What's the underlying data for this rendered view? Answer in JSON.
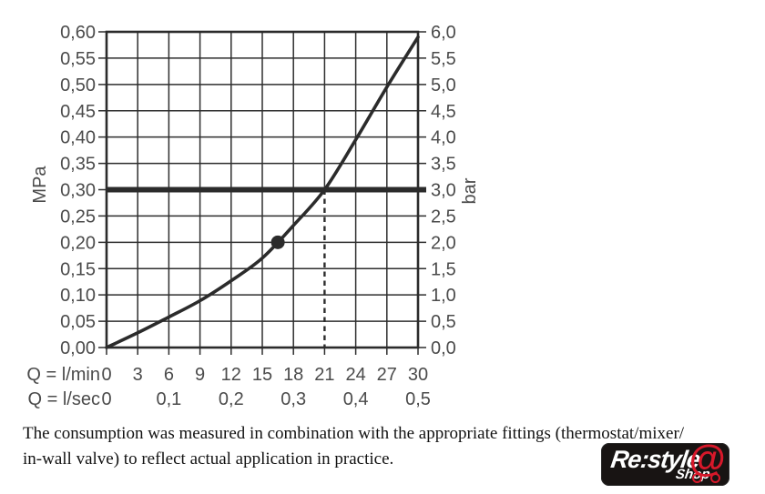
{
  "chart_data": {
    "type": "line",
    "title": "",
    "xlim": [
      0,
      30
    ],
    "ylim": [
      0,
      0.6
    ],
    "grid": {
      "x_step": 3,
      "y_step": 0.05,
      "visible": true
    },
    "y_axis_left": {
      "unit": "MPa",
      "ticks": [
        {
          "v": 0.0,
          "label": "0,00"
        },
        {
          "v": 0.05,
          "label": "0,05"
        },
        {
          "v": 0.1,
          "label": "0,10"
        },
        {
          "v": 0.15,
          "label": "0,15"
        },
        {
          "v": 0.2,
          "label": "0,20"
        },
        {
          "v": 0.25,
          "label": "0,25"
        },
        {
          "v": 0.3,
          "label": "0,30"
        },
        {
          "v": 0.35,
          "label": "0,35"
        },
        {
          "v": 0.4,
          "label": "0,40"
        },
        {
          "v": 0.45,
          "label": "0,45"
        },
        {
          "v": 0.5,
          "label": "0,50"
        },
        {
          "v": 0.55,
          "label": "0,55"
        },
        {
          "v": 0.6,
          "label": "0,60"
        }
      ]
    },
    "y_axis_right": {
      "unit": "bar",
      "ticks": [
        {
          "v": 0.0,
          "label": "0,0"
        },
        {
          "v": 0.05,
          "label": "0,5"
        },
        {
          "v": 0.1,
          "label": "1,0"
        },
        {
          "v": 0.15,
          "label": "1,5"
        },
        {
          "v": 0.2,
          "label": "2,0"
        },
        {
          "v": 0.25,
          "label": "2,5"
        },
        {
          "v": 0.3,
          "label": "3,0"
        },
        {
          "v": 0.35,
          "label": "3,5"
        },
        {
          "v": 0.4,
          "label": "4,0"
        },
        {
          "v": 0.45,
          "label": "4,5"
        },
        {
          "v": 0.5,
          "label": "5,0"
        },
        {
          "v": 0.55,
          "label": "5,5"
        },
        {
          "v": 0.6,
          "label": "6,0"
        }
      ]
    },
    "xlabel_rows": [
      {
        "prefix": "Q = l/min",
        "ticks": [
          {
            "q": 0,
            "label": "0"
          },
          {
            "q": 3,
            "label": "3"
          },
          {
            "q": 6,
            "label": "6"
          },
          {
            "q": 9,
            "label": "9"
          },
          {
            "q": 12,
            "label": "12"
          },
          {
            "q": 15,
            "label": "15"
          },
          {
            "q": 18,
            "label": "18"
          },
          {
            "q": 21,
            "label": "21"
          },
          {
            "q": 24,
            "label": "24"
          },
          {
            "q": 27,
            "label": "27"
          },
          {
            "q": 30,
            "label": "30"
          }
        ]
      },
      {
        "prefix": "Q = l/sec",
        "ticks": [
          {
            "q": 0,
            "label": "0"
          },
          {
            "q": 6,
            "label": "0,1"
          },
          {
            "q": 12,
            "label": "0,2"
          },
          {
            "q": 18,
            "label": "0,3"
          },
          {
            "q": 24,
            "label": "0,4"
          },
          {
            "q": 30,
            "label": "0,5"
          }
        ]
      }
    ],
    "series": [
      {
        "name": "flow-pressure-curve",
        "points": [
          [
            0,
            0.0
          ],
          [
            3,
            0.028
          ],
          [
            6,
            0.058
          ],
          [
            9,
            0.089
          ],
          [
            12,
            0.127
          ],
          [
            15,
            0.17
          ],
          [
            18,
            0.232
          ],
          [
            21,
            0.3
          ],
          [
            24,
            0.395
          ],
          [
            27,
            0.495
          ],
          [
            30,
            0.59
          ]
        ]
      }
    ],
    "marker_point": [
      16.5,
      0.2
    ],
    "reference_line_y": 0.3,
    "dashed_line": {
      "x": 21,
      "y_from": 0.0,
      "y_to": 0.3
    },
    "legend": "none",
    "colors": {
      "line": "#2b2b2b",
      "grid": "#2e2e2e",
      "label": "#4b4b4b"
    }
  },
  "caption": {
    "line1": "The consumption was measured in combination with the appropriate fittings (thermostat/mixer/",
    "line2": "in-wall valve) to reflect actual application in practice."
  },
  "logo": {
    "brand": "Re:style",
    "sub": "Shop",
    "at_symbol": "@",
    "bg_color": "#181413",
    "accent_color": "#d7182a"
  }
}
